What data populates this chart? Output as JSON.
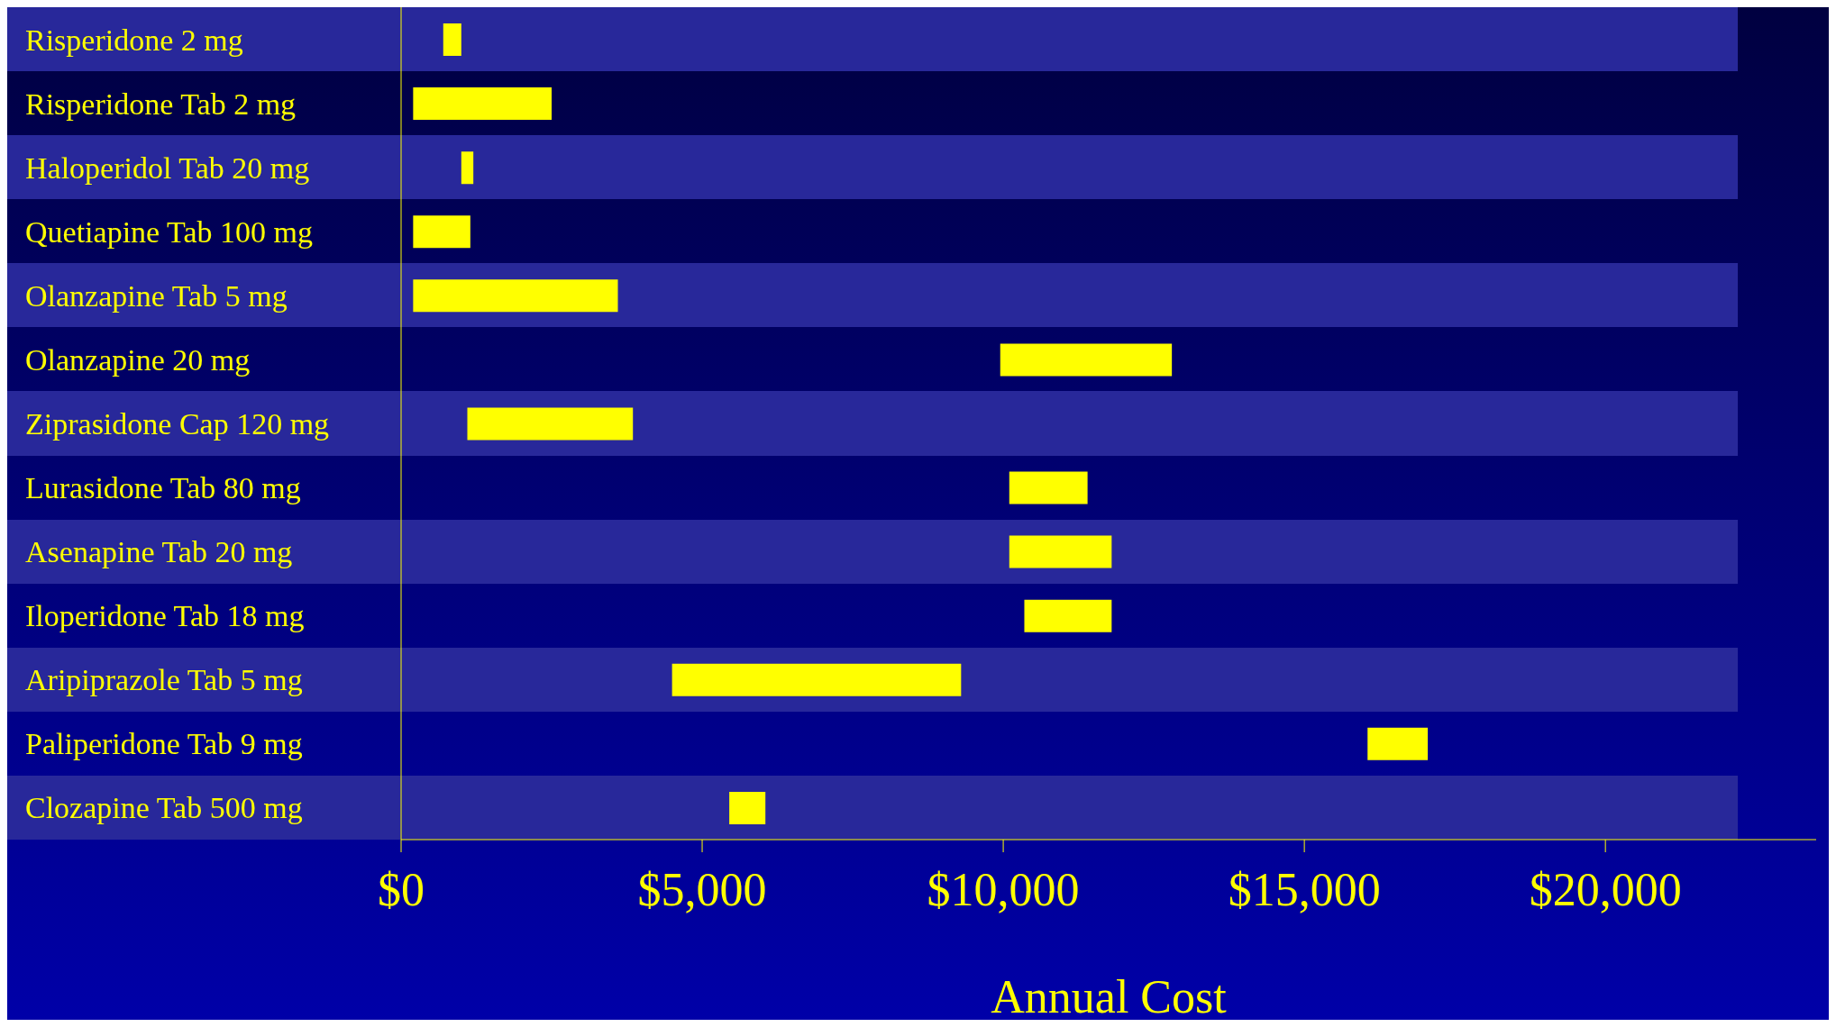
{
  "chart_data": {
    "type": "bar",
    "orientation": "horizontal",
    "xlabel": "Annual Cost",
    "categories": [
      "Risperidone 2 mg",
      "Risperidone Tab 2 mg",
      "Haloperidol Tab 20 mg",
      "Quetiapine Tab 100 mg",
      "Olanzapine Tab 5 mg",
      "Olanzapine 20 mg",
      "Ziprasidone Cap 120 mg",
      "Lurasidone Tab 80 mg",
      "Asenapine Tab 20 mg",
      "Iloperidone Tab 18 mg",
      "Aripiprazole Tab 5 mg",
      "Paliperidone Tab 9 mg",
      "Clozapine Tab 500 mg"
    ],
    "base": [
      700,
      200,
      1000,
      200,
      200,
      9950,
      1100,
      10100,
      10100,
      10350,
      4500,
      16050,
      5450
    ],
    "values": [
      300,
      2300,
      200,
      950,
      3400,
      2850,
      2750,
      1300,
      1700,
      1450,
      4800,
      1000,
      600
    ],
    "color": "#ffff00",
    "xlim": [
      0,
      23500
    ],
    "xticks": [
      {
        "value": 0,
        "label": "$0"
      },
      {
        "value": 5000,
        "label": "$5,000"
      },
      {
        "value": 10000,
        "label": "$10,000"
      },
      {
        "value": 15000,
        "label": "$15,000"
      },
      {
        "value": 20000,
        "label": "$20,000"
      }
    ],
    "grid": false
  }
}
